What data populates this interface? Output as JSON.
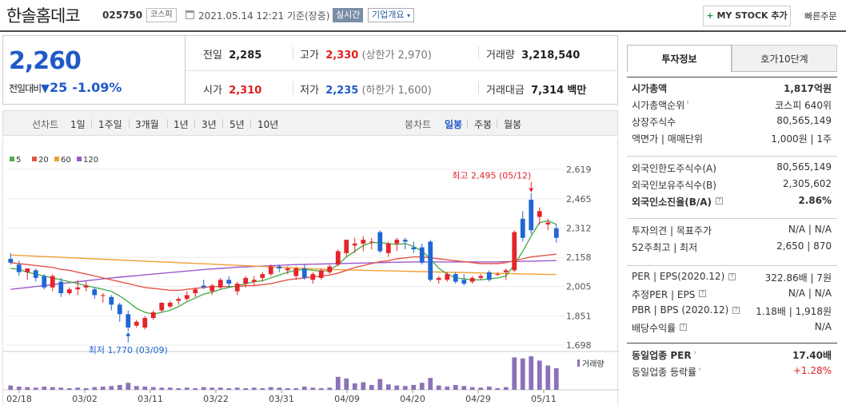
{
  "header": {
    "name": "한솔홈데코",
    "code": "025750",
    "market": "코스피",
    "datetime": "2021.05.14 12:21 기준(장중)",
    "realtime_label": "실시간",
    "corp_label": "기업개요",
    "mystock_label": "MY STOCK 추가",
    "quick_order_label": "빠른주문"
  },
  "price": {
    "current": "2,260",
    "change_label": "전일대비",
    "change": "25",
    "change_pct": "-1.09%"
  },
  "stats": {
    "prev_label": "전일",
    "prev": "2,285",
    "high_label": "고가",
    "high": "2,330",
    "upper_limit": "(상한가 2,970)",
    "volume_label": "거래량",
    "volume": "3,218,540",
    "open_label": "시가",
    "open": "2,310",
    "low_label": "저가",
    "low": "2,235",
    "lower_limit": "(하한가 1,600)",
    "amount_label": "거래대금",
    "amount": "7,314",
    "amount_unit": "백만"
  },
  "periods": {
    "label": "선차트",
    "items": [
      "1일",
      "1주일",
      "3개월",
      "1년",
      "3년",
      "5년",
      "10년"
    ],
    "candle_label": "봉차트",
    "candle_items": [
      "일봉",
      "주봉",
      "월봉"
    ],
    "candle_selected": 0
  },
  "chart_data": {
    "type": "candlestick",
    "legend": [
      {
        "name": "5",
        "color": "#4caf50"
      },
      {
        "name": "20",
        "color": "#e5534b"
      },
      {
        "name": "60",
        "color": "#f0a030"
      },
      {
        "name": "120",
        "color": "#9b59c9"
      }
    ],
    "y_ticks": [
      2619,
      2465,
      2312,
      2158,
      2005,
      1851,
      1698
    ],
    "ylim": [
      1698,
      2619
    ],
    "x_ticks": [
      "02/18",
      "03/02",
      "03/11",
      "03/22",
      "03/31",
      "04/09",
      "04/20",
      "04/29",
      "05/11"
    ],
    "max_annotation": "최고 2,495 (05/12)",
    "min_annotation": "최저 1,770 (03/09)",
    "volume_label": "거래량",
    "candles": [
      [
        2150,
        2180,
        2120,
        2130
      ],
      [
        2120,
        2140,
        2060,
        2080
      ],
      [
        2080,
        2100,
        2040,
        2100
      ],
      [
        2090,
        2100,
        2030,
        2050
      ],
      [
        2060,
        2070,
        1990,
        2000
      ],
      [
        2000,
        2070,
        1980,
        2060
      ],
      [
        2030,
        2050,
        1950,
        1970
      ],
      [
        1970,
        2000,
        1960,
        1990
      ],
      [
        1990,
        2040,
        1960,
        2000
      ],
      [
        2000,
        2030,
        1980,
        2010
      ],
      [
        1990,
        2000,
        1940,
        1960
      ],
      [
        1960,
        1970,
        1920,
        1960
      ],
      [
        1950,
        1960,
        1880,
        1910
      ],
      [
        1910,
        1920,
        1820,
        1860
      ],
      [
        1860,
        1880,
        1770,
        1790
      ],
      [
        1800,
        1830,
        1790,
        1820
      ],
      [
        1790,
        1850,
        1780,
        1840
      ],
      [
        1840,
        1880,
        1830,
        1870
      ],
      [
        1880,
        1920,
        1870,
        1920
      ],
      [
        1900,
        1930,
        1890,
        1920
      ],
      [
        1930,
        1950,
        1910,
        1940
      ],
      [
        1940,
        1980,
        1930,
        1960
      ],
      [
        1970,
        2000,
        1950,
        1990
      ],
      [
        2010,
        2040,
        1990,
        2000
      ],
      [
        1980,
        2020,
        1960,
        2010
      ],
      [
        2000,
        2050,
        1990,
        2040
      ],
      [
        2040,
        2060,
        2000,
        2020
      ],
      [
        1980,
        2030,
        1960,
        2020
      ],
      [
        2020,
        2060,
        2000,
        2050
      ],
      [
        2030,
        2060,
        2010,
        2040
      ],
      [
        2050,
        2080,
        2030,
        2070
      ],
      [
        2070,
        2120,
        2060,
        2110
      ],
      [
        2110,
        2120,
        2080,
        2100
      ],
      [
        2090,
        2110,
        2070,
        2100
      ],
      [
        2060,
        2110,
        2040,
        2100
      ],
      [
        2100,
        2120,
        2040,
        2050
      ],
      [
        2040,
        2080,
        2020,
        2070
      ],
      [
        2050,
        2100,
        2040,
        2090
      ],
      [
        2080,
        2120,
        2070,
        2110
      ],
      [
        2120,
        2200,
        2110,
        2190
      ],
      [
        2180,
        2250,
        2160,
        2250
      ],
      [
        2220,
        2260,
        2180,
        2230
      ],
      [
        2230,
        2270,
        2190,
        2250
      ],
      [
        2240,
        2260,
        2200,
        2240
      ],
      [
        2290,
        2300,
        2180,
        2190
      ],
      [
        2180,
        2240,
        2160,
        2230
      ],
      [
        2230,
        2260,
        2190,
        2250
      ],
      [
        2250,
        2260,
        2200,
        2240
      ],
      [
        2210,
        2240,
        2180,
        2200
      ],
      [
        2210,
        2230,
        2120,
        2130
      ],
      [
        2240,
        2250,
        2030,
        2040
      ],
      [
        2040,
        2060,
        2020,
        2050
      ],
      [
        2040,
        2080,
        2030,
        2070
      ],
      [
        2070,
        2080,
        2020,
        2030
      ],
      [
        2040,
        2070,
        2010,
        2020
      ],
      [
        2030,
        2060,
        2020,
        2050
      ],
      [
        2050,
        2070,
        2040,
        2060
      ],
      [
        2080,
        2090,
        2030,
        2040
      ],
      [
        2070,
        2080,
        2060,
        2070
      ],
      [
        2080,
        2100,
        2040,
        2090
      ],
      [
        2090,
        2300,
        2080,
        2290
      ],
      [
        2360,
        2400,
        2240,
        2260
      ],
      [
        2460,
        2495,
        2280,
        2300
      ],
      [
        2370,
        2420,
        2330,
        2400
      ],
      [
        2330,
        2360,
        2300,
        2340
      ],
      [
        2310,
        2330,
        2235,
        2260
      ]
    ],
    "volumes": [
      8,
      6,
      5,
      4,
      6,
      5,
      4,
      3,
      4,
      3,
      5,
      6,
      7,
      9,
      13,
      7,
      6,
      5,
      4,
      4,
      3,
      4,
      3,
      5,
      4,
      4,
      3,
      4,
      3,
      4,
      3,
      5,
      4,
      3,
      3,
      6,
      4,
      3,
      4,
      24,
      21,
      12,
      14,
      9,
      20,
      10,
      8,
      7,
      9,
      13,
      22,
      8,
      6,
      9,
      7,
      5,
      4,
      6,
      3,
      5,
      60,
      58,
      62,
      54,
      45,
      40
    ],
    "ma5": [
      2100,
      2095,
      2080,
      2070,
      2060,
      2050,
      2040,
      2030,
      2020,
      2010,
      2000,
      1990,
      1980,
      1955,
      1925,
      1890,
      1870,
      1860,
      1870,
      1880,
      1900,
      1925,
      1945,
      1965,
      1975,
      1990,
      2000,
      2010,
      2020,
      2030,
      2035,
      2050,
      2065,
      2080,
      2090,
      2095,
      2090,
      2085,
      2090,
      2120,
      2160,
      2190,
      2220,
      2235,
      2235,
      2230,
      2225,
      2230,
      2215,
      2190,
      2150,
      2100,
      2070,
      2050,
      2045,
      2040,
      2040,
      2045,
      2050,
      2060,
      2120,
      2190,
      2270,
      2340,
      2350,
      2330
    ],
    "ma20": [
      2130,
      2125,
      2120,
      2115,
      2110,
      2105,
      2095,
      2090,
      2080,
      2070,
      2060,
      2050,
      2040,
      2030,
      2020,
      2010,
      2000,
      1995,
      1990,
      1985,
      1985,
      1990,
      1995,
      2000,
      2005,
      2005,
      2005,
      2005,
      2010,
      2010,
      2015,
      2020,
      2030,
      2040,
      2045,
      2050,
      2055,
      2060,
      2065,
      2075,
      2090,
      2105,
      2115,
      2125,
      2135,
      2140,
      2150,
      2155,
      2160,
      2160,
      2155,
      2150,
      2145,
      2140,
      2135,
      2130,
      2125,
      2125,
      2125,
      2130,
      2140,
      2150,
      2160,
      2165,
      2170,
      2175
    ],
    "ma60": [
      2170,
      2168,
      2166,
      2164,
      2162,
      2160,
      2158,
      2156,
      2154,
      2152,
      2150,
      2148,
      2146,
      2144,
      2142,
      2140,
      2138,
      2136,
      2134,
      2132,
      2130,
      2128,
      2126,
      2124,
      2122,
      2120,
      2118,
      2116,
      2114,
      2112,
      2110,
      2108,
      2106,
      2104,
      2102,
      2100,
      2098,
      2096,
      2094,
      2093,
      2092,
      2091,
      2090,
      2089,
      2088,
      2087,
      2086,
      2085,
      2084,
      2083,
      2082,
      2081,
      2080,
      2079,
      2078,
      2077,
      2076,
      2075,
      2074,
      2073,
      2072,
      2071,
      2070,
      2069,
      2068,
      2068
    ],
    "ma120": [
      1990,
      1995,
      2000,
      2005,
      2010,
      2015,
      2020,
      2025,
      2030,
      2035,
      2040,
      2045,
      2050,
      2054,
      2058,
      2062,
      2066,
      2070,
      2074,
      2078,
      2082,
      2086,
      2090,
      2094,
      2097,
      2100,
      2103,
      2106,
      2108,
      2110,
      2112,
      2114,
      2116,
      2118,
      2120,
      2121,
      2122,
      2123,
      2124,
      2125,
      2126,
      2127,
      2128,
      2129,
      2130,
      2131,
      2132,
      2133,
      2134,
      2134,
      2134,
      2134,
      2134,
      2134,
      2134,
      2134,
      2134,
      2134,
      2134,
      2135,
      2136,
      2137,
      2138,
      2139,
      2140,
      2141
    ]
  },
  "rpanel": {
    "tab_active": "투자정보",
    "tab_other": "호가10단계",
    "group1": [
      {
        "k": "시가총액",
        "v": "1,817억원",
        "bold": true
      },
      {
        "k": "시가총액순위",
        "v": "코스피 640위",
        "arrow": true
      },
      {
        "k": "상장주식수",
        "v": "80,565,149"
      },
      {
        "k": "액면가 | 매매단위",
        "v": "1,000원 | 1주"
      }
    ],
    "group2": [
      {
        "k": "외국인한도주식수(A)",
        "v": "80,565,149"
      },
      {
        "k": "외국인보유주식수(B)",
        "v": "2,305,602"
      },
      {
        "k": "외국인소진율(B/A)",
        "v": "2.86%",
        "bold": true,
        "icon": true
      }
    ],
    "group3": [
      {
        "k": "투자의견 | 목표주가",
        "v": "N/A | N/A"
      },
      {
        "k": "52주최고 | 최저",
        "v": "2,650 | 870"
      }
    ],
    "group4": [
      {
        "k": "PER | EPS(2020.12)",
        "v": "322.86배 | 7원",
        "icon": true
      },
      {
        "k": "추정PER | EPS",
        "v": "N/A | N/A",
        "icon": true
      },
      {
        "k": "PBR | BPS (2020.12)",
        "v": "1.18배 | 1,918원",
        "icon": true
      },
      {
        "k": "배당수익률",
        "v": "N/A",
        "icon": true
      }
    ],
    "group5": [
      {
        "k": "동일업종 PER",
        "v": "17.40배",
        "bold": true,
        "arrow": true
      },
      {
        "k": "동일업종 등락률",
        "v": "+1.28%",
        "arrow": true,
        "red": true
      }
    ]
  }
}
